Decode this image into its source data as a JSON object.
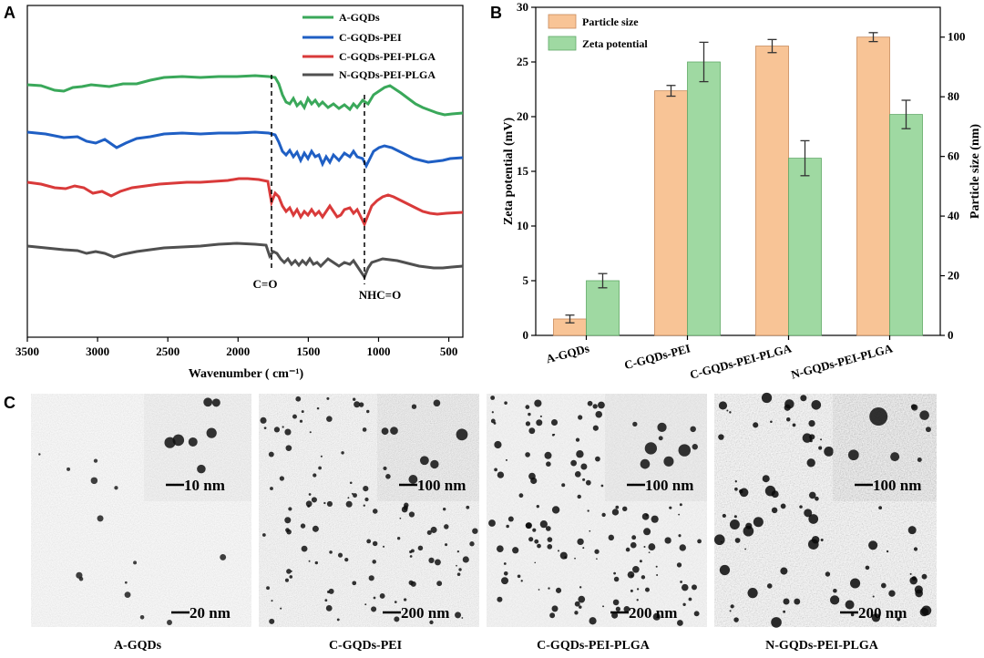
{
  "panel_labels": {
    "a": "A",
    "b": "B",
    "c": "C"
  },
  "colors": {
    "a_gqds": "#3aa85a",
    "c_gqds_pei": "#1f5fc4",
    "c_gqds_pei_plga": "#d93a3a",
    "n_gqds_pei_plga": "#505050",
    "particle_bar": "#f8c496",
    "zeta_bar": "#9fd9a2",
    "tem_bg": "#c8c8c8"
  },
  "chart_data": [
    {
      "type": "line",
      "id": "ftir",
      "title": "",
      "xlabel": "Wavenumber ( cm⁻¹)",
      "ylabel": "",
      "xlim": [
        3500,
        400
      ],
      "x_ticks": [
        3500,
        3000,
        2500,
        2000,
        1500,
        1000,
        500
      ],
      "series": [
        {
          "name": "A-GQDs"
        },
        {
          "name": "C-GQDs-PEI"
        },
        {
          "name": "C-GQDs-PEI-PLGA"
        },
        {
          "name": "N-GQDs-PEI-PLGA"
        }
      ],
      "annotations": [
        {
          "text": "C=O",
          "wavenumber": 1750
        },
        {
          "text": "NHC=O",
          "wavenumber": 1090
        }
      ]
    },
    {
      "type": "bar",
      "id": "size_zeta",
      "categories": [
        "A-GQDs",
        "C-GQDs-PEI",
        "C-GQDs-PEI-PLGA",
        "N-GQDs-PEI-PLGA"
      ],
      "ylabel": "Zeta potential (mV)",
      "y2label": "Particle size (nm)",
      "ylim": [
        0,
        30
      ],
      "y2lim": [
        0,
        110
      ],
      "y_ticks": [
        0,
        5,
        10,
        15,
        20,
        25,
        30
      ],
      "y2_ticks": [
        0,
        20,
        40,
        60,
        80,
        100
      ],
      "series": [
        {
          "name": "Particle size",
          "axis": "right",
          "values": [
            5.5,
            82,
            97,
            100
          ],
          "errors": [
            1.3,
            1.8,
            2.2,
            1.5
          ]
        },
        {
          "name": "Zeta potential",
          "axis": "left",
          "values": [
            5.0,
            25.0,
            16.2,
            20.2
          ],
          "errors": [
            0.65,
            1.8,
            1.6,
            1.3
          ]
        }
      ],
      "legend_position": "top-left"
    }
  ],
  "tem": [
    {
      "caption": "A-GQDs",
      "main_scale": "20 nm",
      "inset_scale": "10 nm"
    },
    {
      "caption": "C-GQDs-PEI",
      "main_scale": "200 nm",
      "inset_scale": "100 nm"
    },
    {
      "caption": "C-GQDs-PEI-PLGA",
      "main_scale": "200 nm",
      "inset_scale": "100 nm"
    },
    {
      "caption": "N-GQDs-PEI-PLGA",
      "main_scale": "200 nm",
      "inset_scale": "100 nm"
    }
  ]
}
